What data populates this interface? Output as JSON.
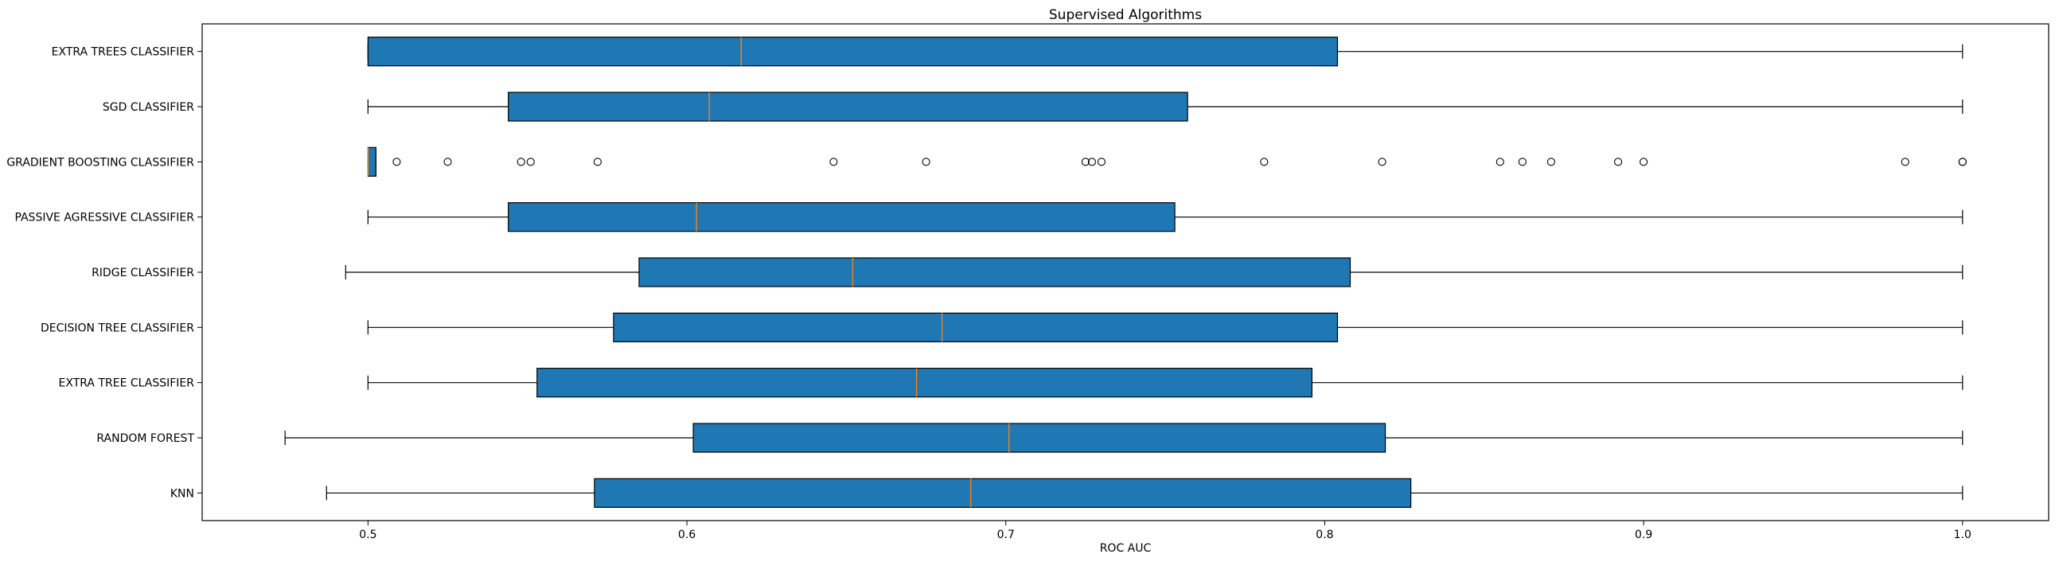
{
  "chart_data": {
    "type": "boxplot",
    "orientation": "horizontal",
    "title": "Supervised Algorithms",
    "xlabel": "ROC AUC",
    "ylabel": "",
    "xlim": [
      0.448,
      1.027
    ],
    "xticks": [
      "0.5",
      "0.6",
      "0.7",
      "0.8",
      "0.9",
      "1.0"
    ],
    "grid": false,
    "box_color": "#1f77b4",
    "median_color": "#ff7f0e",
    "series": [
      {
        "name": "EXTRA TREES CLASSIFIER",
        "whislo": 0.5,
        "q1": 0.5,
        "median": 0.617,
        "q3": 0.804,
        "whishi": 1.0,
        "fliers": []
      },
      {
        "name": "SGD CLASSIFIER",
        "whislo": 0.5,
        "q1": 0.544,
        "median": 0.607,
        "q3": 0.757,
        "whishi": 1.0,
        "fliers": []
      },
      {
        "name": "GRADIENT BOOSTING CLASSIFIER",
        "whislo": 0.5,
        "q1": 0.5,
        "median": 0.5,
        "q3": 0.5025,
        "whishi": 0.5025,
        "fliers": [
          0.509,
          0.525,
          0.548,
          0.551,
          0.572,
          0.646,
          0.675,
          0.725,
          0.727,
          0.73,
          0.781,
          0.818,
          0.855,
          0.862,
          0.871,
          0.892,
          0.9,
          0.982,
          1.0,
          1.0
        ]
      },
      {
        "name": "PASSIVE AGRESSIVE CLASSIFIER",
        "whislo": 0.5,
        "q1": 0.544,
        "median": 0.603,
        "q3": 0.753,
        "whishi": 1.0,
        "fliers": []
      },
      {
        "name": "RIDGE CLASSIFIER",
        "whislo": 0.493,
        "q1": 0.585,
        "median": 0.652,
        "q3": 0.808,
        "whishi": 1.0,
        "fliers": []
      },
      {
        "name": "DECISION TREE CLASSIFIER",
        "whislo": 0.5,
        "q1": 0.577,
        "median": 0.68,
        "q3": 0.804,
        "whishi": 1.0,
        "fliers": []
      },
      {
        "name": "EXTRA TREE CLASSIFIER",
        "whislo": 0.5,
        "q1": 0.553,
        "median": 0.672,
        "q3": 0.796,
        "whishi": 1.0,
        "fliers": []
      },
      {
        "name": "RANDOM FOREST",
        "whislo": 0.474,
        "q1": 0.602,
        "median": 0.701,
        "q3": 0.819,
        "whishi": 1.0,
        "fliers": []
      },
      {
        "name": "KNN",
        "whislo": 0.487,
        "q1": 0.571,
        "median": 0.689,
        "q3": 0.827,
        "whishi": 1.0,
        "fliers": []
      }
    ]
  }
}
